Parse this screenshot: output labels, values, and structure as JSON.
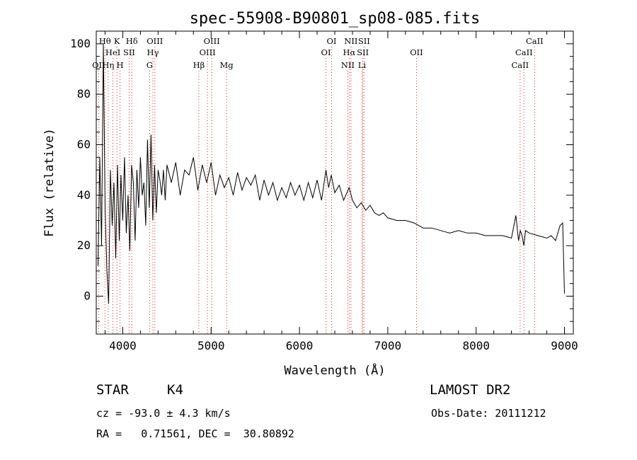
{
  "chart_data": {
    "type": "line",
    "title": "spec-55908-B90801_sp08-085.fits",
    "xlabel": "Wavelength (Å)",
    "ylabel": "Flux (relative)",
    "xlim": [
      3700,
      9100
    ],
    "ylim": [
      -15,
      105
    ],
    "xticks": [
      4000,
      5000,
      6000,
      7000,
      8000,
      9000
    ],
    "yticks": [
      0,
      20,
      40,
      60,
      80,
      100
    ],
    "grid": false,
    "line_color": "#000000",
    "marker_color": "#d62728",
    "series": [
      {
        "x": [
          3720,
          3740,
          3760,
          3780,
          3800,
          3820,
          3840,
          3860,
          3880,
          3900,
          3920,
          3940,
          3960,
          3980,
          4000,
          4020,
          4040,
          4060,
          4080,
          4100,
          4120,
          4140,
          4160,
          4180,
          4200,
          4220,
          4240,
          4260,
          4280,
          4300,
          4320,
          4340,
          4360,
          4380,
          4400,
          4420,
          4440,
          4460,
          4480,
          4500,
          4550,
          4600,
          4650,
          4700,
          4750,
          4800,
          4850,
          4900,
          4950,
          5000,
          5050,
          5100,
          5150,
          5200,
          5250,
          5300,
          5350,
          5400,
          5450,
          5500,
          5550,
          5600,
          5650,
          5700,
          5750,
          5800,
          5850,
          5900,
          5950,
          6000,
          6050,
          6100,
          6150,
          6200,
          6250,
          6300,
          6330,
          6360,
          6400,
          6450,
          6500,
          6550,
          6563,
          6600,
          6650,
          6700,
          6750,
          6800,
          6850,
          6900,
          6950,
          7000,
          7100,
          7200,
          7300,
          7400,
          7500,
          7600,
          7700,
          7800,
          7900,
          8000,
          8100,
          8200,
          8300,
          8400,
          8450,
          8480,
          8500,
          8520,
          8540,
          8560,
          8600,
          8700,
          8800,
          8850,
          8900,
          8950,
          8980,
          9000
        ],
        "y": [
          12,
          55,
          20,
          100,
          35,
          10,
          -3,
          50,
          28,
          45,
          15,
          52,
          22,
          48,
          30,
          55,
          25,
          40,
          18,
          52,
          45,
          22,
          50,
          35,
          55,
          40,
          45,
          28,
          62,
          35,
          64,
          30,
          52,
          33,
          50,
          46,
          40,
          50,
          38,
          52,
          45,
          53,
          40,
          50,
          48,
          55,
          42,
          52,
          45,
          53,
          40,
          48,
          43,
          47,
          40,
          49,
          42,
          47,
          44,
          48,
          38,
          46,
          40,
          45,
          38,
          43,
          39,
          45,
          40,
          44,
          38,
          45,
          39,
          46,
          38,
          50,
          43,
          48,
          41,
          44,
          38,
          42,
          43,
          38,
          35,
          37,
          34,
          36,
          33,
          32,
          33,
          31,
          30,
          30,
          29,
          27,
          27,
          26,
          25,
          26,
          25,
          25,
          24,
          24,
          24,
          23,
          32,
          22,
          26,
          24,
          20,
          26,
          25,
          24,
          23,
          24,
          22,
          28,
          29,
          1
        ]
      }
    ],
    "spectral_lines": [
      {
        "label": "Hθ",
        "x": 3798,
        "row": 0
      },
      {
        "label": "K",
        "x": 3934,
        "row": 0
      },
      {
        "label": "Hδ",
        "x": 4102,
        "row": 0
      },
      {
        "label": "OIII",
        "x": 4363,
        "row": 0
      },
      {
        "label": "OIII",
        "x": 5007,
        "row": 0
      },
      {
        "label": "OI",
        "x": 6364,
        "row": 0
      },
      {
        "label": "NII",
        "x": 6583,
        "row": 0
      },
      {
        "label": "SII",
        "x": 6731,
        "row": 0
      },
      {
        "label": "CaII",
        "x": 8662,
        "row": 0
      },
      {
        "label": "HeI",
        "x": 3889,
        "row": 1
      },
      {
        "label": "SII",
        "x": 4072,
        "row": 1
      },
      {
        "label": "Hγ",
        "x": 4341,
        "row": 1
      },
      {
        "label": "OIII",
        "x": 4959,
        "row": 1
      },
      {
        "label": "OI",
        "x": 6300,
        "row": 1
      },
      {
        "label": "Hα",
        "x": 6563,
        "row": 1
      },
      {
        "label": "SII",
        "x": 6717,
        "row": 1
      },
      {
        "label": "OII",
        "x": 7325,
        "row": 1
      },
      {
        "label": "CaII",
        "x": 8542,
        "row": 1
      },
      {
        "label": "OII",
        "x": 3727,
        "row": 2
      },
      {
        "label": "Hη",
        "x": 3835,
        "row": 2
      },
      {
        "label": "H",
        "x": 3969,
        "row": 2
      },
      {
        "label": "G",
        "x": 4304,
        "row": 2
      },
      {
        "label": "Hβ",
        "x": 4861,
        "row": 2
      },
      {
        "label": "Mg",
        "x": 5175,
        "row": 2
      },
      {
        "label": "NII",
        "x": 6548,
        "row": 2
      },
      {
        "label": "Li",
        "x": 6708,
        "row": 2
      },
      {
        "label": "CaII",
        "x": 8498,
        "row": 2
      }
    ]
  },
  "footer": {
    "class_label": "STAR",
    "subclass": "K4",
    "survey": "LAMOST DR2",
    "cz": "cz = -93.0 ± 4.3 km/s",
    "obs_date": "Obs-Date: 20111212",
    "coords": "RA =   0.71561, DEC =  30.80892"
  }
}
